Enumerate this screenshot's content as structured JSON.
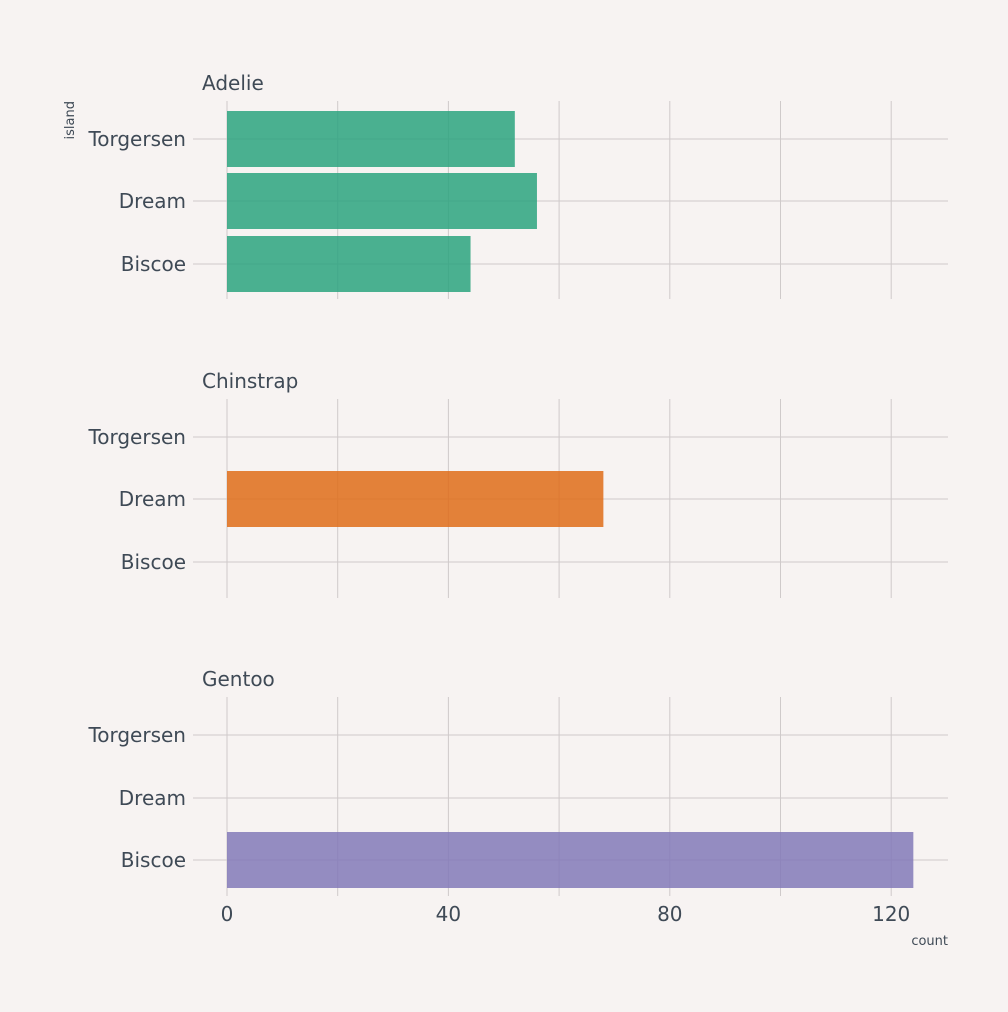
{
  "chart_data": {
    "type": "bar",
    "orientation": "horizontal",
    "categories": [
      "Biscoe",
      "Dream",
      "Torgersen"
    ],
    "xlabel": "count",
    "ylabel": "island",
    "xlim": [
      0,
      130
    ],
    "x_ticks": [
      0,
      40,
      80,
      120
    ],
    "grid": true,
    "facets": [
      {
        "title": "Adelie",
        "color": "#2ca37f",
        "values": [
          44,
          56,
          52
        ]
      },
      {
        "title": "Chinstrap",
        "color": "#df6c19",
        "values": [
          0,
          68,
          0
        ]
      },
      {
        "title": "Gentoo",
        "color": "#8379b8",
        "values": [
          124,
          0,
          0
        ]
      }
    ]
  }
}
